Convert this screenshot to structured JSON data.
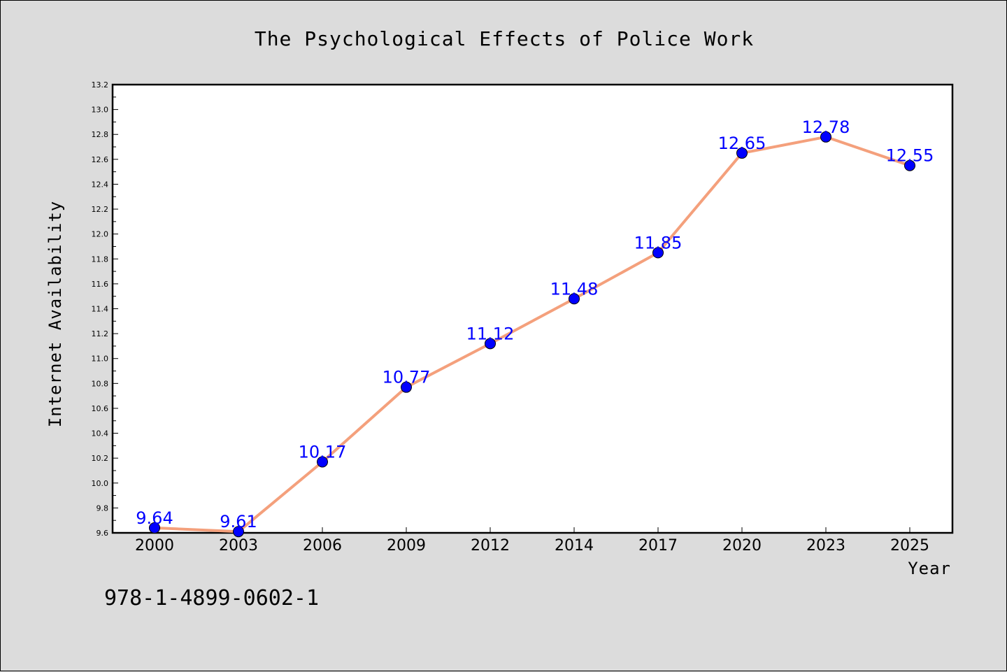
{
  "chart_data": {
    "type": "line",
    "title": "The Psychological Effects of Police Work",
    "xlabel": "Year",
    "ylabel": "Internet Availability",
    "categories": [
      "2000",
      "2003",
      "2006",
      "2009",
      "2012",
      "2014",
      "2017",
      "2020",
      "2023",
      "2025"
    ],
    "series": [
      {
        "values": [
          9.64,
          9.61,
          10.17,
          10.77,
          11.12,
          11.48,
          11.85,
          12.65,
          12.78,
          12.55
        ],
        "line_color": "#f4a07c",
        "marker_color": "#0000ff",
        "label_color": "#0000ff"
      }
    ],
    "data_labels": [
      "9.64",
      "9.61",
      "10.17",
      "10.77",
      "11.12",
      "11.48",
      "11.85",
      "12.65",
      "12.78",
      "12.55"
    ],
    "ylim": [
      9.6,
      13.2
    ],
    "yticks": [
      "9.6",
      "9.8",
      "10.0",
      "10.2",
      "10.4",
      "10.6",
      "10.8",
      "11.0",
      "11.2",
      "11.4",
      "11.6",
      "11.8",
      "12.0",
      "12.2",
      "12.4",
      "12.6",
      "12.8",
      "13.0",
      "13.2"
    ],
    "grid": false,
    "legend": false
  },
  "footer": {
    "isbn": "978-1-4899-0602-1"
  },
  "colors": {
    "background": "#dcdcdc",
    "plot_background": "#ffffff",
    "line": "#f4a07c",
    "marker": "#0000ff",
    "data_label": "#0000ff"
  }
}
